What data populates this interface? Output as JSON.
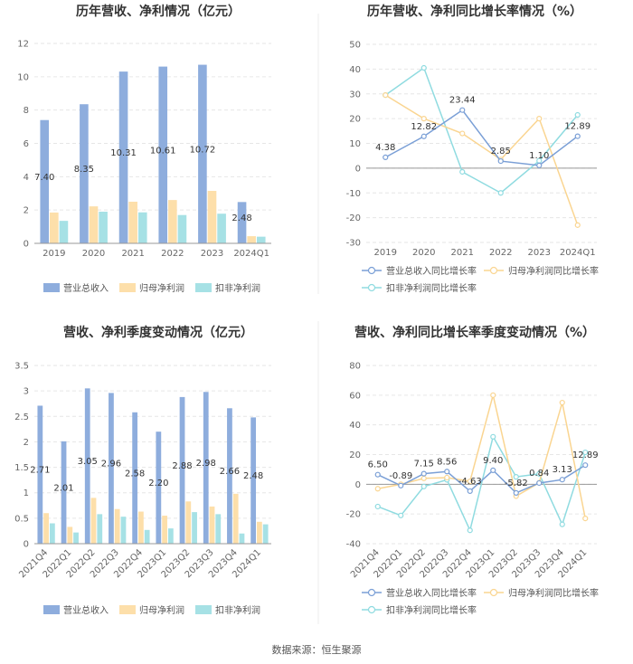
{
  "source_text": "数据来源：恒生聚源",
  "colors": {
    "revenue": "#8eaddd",
    "net_profit": "#fddfaa",
    "deducted_profit": "#a6e1e5",
    "revenue_line": "#7a9fd6",
    "net_line": "#fad591",
    "deducted_line": "#8fdbe0",
    "grid": "#e6e6e6",
    "axis": "#999999"
  },
  "chart_data": [
    {
      "id": "annual_bar",
      "type": "bar",
      "title": "历年营收、净利情况（亿元）",
      "categories": [
        "2019",
        "2020",
        "2021",
        "2022",
        "2023",
        "2024Q1"
      ],
      "series": [
        {
          "name": "营业总收入",
          "values": [
            7.4,
            8.35,
            10.31,
            10.61,
            10.72,
            2.48
          ]
        },
        {
          "name": "归母净利润",
          "values": [
            1.85,
            2.22,
            2.5,
            2.6,
            3.15,
            0.43
          ]
        },
        {
          "name": "扣非净利润",
          "values": [
            1.35,
            1.9,
            1.86,
            1.7,
            1.78,
            0.4
          ]
        }
      ],
      "data_labels": [
        "7.40",
        "8.35",
        "10.31",
        "10.61",
        "10.72",
        "2.48"
      ],
      "ylim": [
        0,
        12
      ],
      "yticks": [
        "0",
        "2",
        "4",
        "6",
        "8",
        "10",
        "12"
      ],
      "legend": [
        "营业总收入",
        "归母净利润",
        "扣非净利润"
      ]
    },
    {
      "id": "annual_line",
      "type": "line",
      "title": "历年营收、净利同比增长率情况（%）",
      "categories": [
        "2019",
        "2020",
        "2021",
        "2022",
        "2023",
        "2024Q1"
      ],
      "series": [
        {
          "name": "营业总收入同比增长率",
          "values": [
            4.38,
            12.82,
            23.44,
            2.85,
            1.1,
            12.89
          ]
        },
        {
          "name": "归母净利润同比增长率",
          "values": [
            29.5,
            20.0,
            14.0,
            3.5,
            20.0,
            -23.0
          ]
        },
        {
          "name": "扣非净利润同比增长率",
          "values": [
            29.5,
            40.5,
            -1.5,
            -10.0,
            3.0,
            21.5
          ]
        }
      ],
      "data_labels": [
        "4.38",
        "12.82",
        "23.44",
        "2.85",
        "1.10",
        "12.89"
      ],
      "ylim": [
        -30,
        50
      ],
      "yticks": [
        "-30",
        "-20",
        "-10",
        "0",
        "10",
        "20",
        "30",
        "40",
        "50"
      ],
      "legend": [
        "营业总收入同比增长率",
        "归母净利润同比增长率",
        "扣非净利润同比增长率"
      ]
    },
    {
      "id": "quarter_bar",
      "type": "bar",
      "title": "营收、净利季度变动情况（亿元）",
      "categories": [
        "2021Q4",
        "2022Q1",
        "2022Q2",
        "2022Q3",
        "2022Q4",
        "2023Q1",
        "2023Q2",
        "2023Q3",
        "2023Q4",
        "2024Q1"
      ],
      "series": [
        {
          "name": "营业总收入",
          "values": [
            2.71,
            2.01,
            3.05,
            2.96,
            2.58,
            2.2,
            2.88,
            2.98,
            2.66,
            2.48
          ]
        },
        {
          "name": "归母净利润",
          "values": [
            0.6,
            0.33,
            0.9,
            0.68,
            0.63,
            0.55,
            0.83,
            0.73,
            0.98,
            0.43
          ]
        },
        {
          "name": "扣非净利润",
          "values": [
            0.4,
            0.22,
            0.58,
            0.53,
            0.27,
            0.3,
            0.62,
            0.58,
            0.2,
            0.38
          ]
        }
      ],
      "data_labels": [
        "2.71",
        "2.01",
        "3.05",
        "2.96",
        "2.58",
        "2.20",
        "2.88",
        "2.98",
        "2.66",
        "2.48"
      ],
      "ylim": [
        0,
        3.5
      ],
      "yticks": [
        "0",
        "0.5",
        "1",
        "1.5",
        "2",
        "2.5",
        "3",
        "3.5"
      ],
      "legend": [
        "营业总收入",
        "归母净利润",
        "扣非净利润"
      ]
    },
    {
      "id": "quarter_line",
      "type": "line",
      "title": "营收、净利同比增长率季度变动情况（%）",
      "categories": [
        "2021Q4",
        "2022Q1",
        "2022Q2",
        "2022Q3",
        "2022Q4",
        "2023Q1",
        "2023Q2",
        "2023Q3",
        "2023Q4",
        "2024Q1"
      ],
      "series": [
        {
          "name": "营业总收入同比增长率",
          "values": [
            6.5,
            -0.89,
            7.15,
            8.56,
            -4.63,
            9.4,
            -5.82,
            0.84,
            3.13,
            12.89
          ]
        },
        {
          "name": "归母净利润同比增长率",
          "values": [
            -3.0,
            0.0,
            4.0,
            4.5,
            2.0,
            60.0,
            -8.0,
            1.0,
            55.0,
            -23.0
          ]
        },
        {
          "name": "扣非净利润同比增长率",
          "values": [
            -15.0,
            -21.0,
            -1.5,
            3.0,
            -31.0,
            32.0,
            5.0,
            7.0,
            -27.0,
            21.5
          ]
        }
      ],
      "data_labels": [
        "6.50",
        "-0.89",
        "7.15",
        "8.56",
        "-4.63",
        "9.40",
        "-5.82",
        "0.84",
        "3.13",
        "12.89"
      ],
      "ylim": [
        -40,
        80
      ],
      "yticks": [
        "-40",
        "-20",
        "0",
        "20",
        "40",
        "60",
        "80"
      ],
      "legend": [
        "营业总收入同比增长率",
        "归母净利润同比增长率",
        "扣非净利润同比增长率"
      ]
    }
  ]
}
